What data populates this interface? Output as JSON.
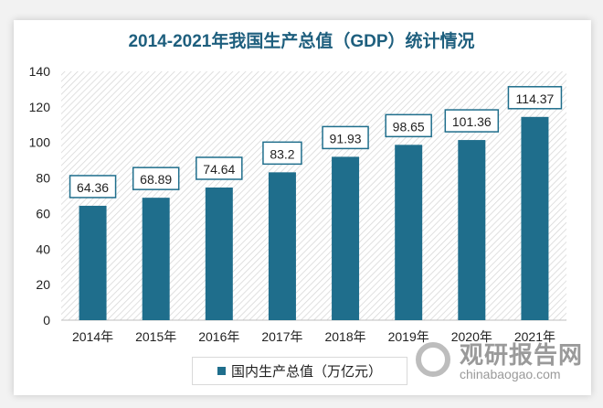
{
  "chart_data": {
    "type": "bar",
    "title": "2014-2021年我国生产总值（GDP）统计情况",
    "categories": [
      "2014年",
      "2015年",
      "2016年",
      "2017年",
      "2018年",
      "2019年",
      "2020年",
      "2021年"
    ],
    "series": [
      {
        "name": "国内生产总值（万亿元）",
        "values": [
          64.36,
          68.89,
          74.64,
          83.2,
          91.93,
          98.65,
          101.36,
          114.37
        ],
        "labels": [
          "64.36",
          "68.89",
          "74.64",
          "83.2",
          "91.93",
          "98.65",
          "101.36",
          "114.37"
        ]
      }
    ],
    "ylim": [
      0,
      140
    ],
    "yticks": [
      0,
      20,
      40,
      60,
      80,
      100,
      120,
      140
    ],
    "grid": false,
    "legend": "bottom",
    "bar_color": "#1f6e8c",
    "label_border_color": "#1f6e8c"
  },
  "watermark": {
    "cn": "观研报告网",
    "en": "chinabaogao.com"
  }
}
